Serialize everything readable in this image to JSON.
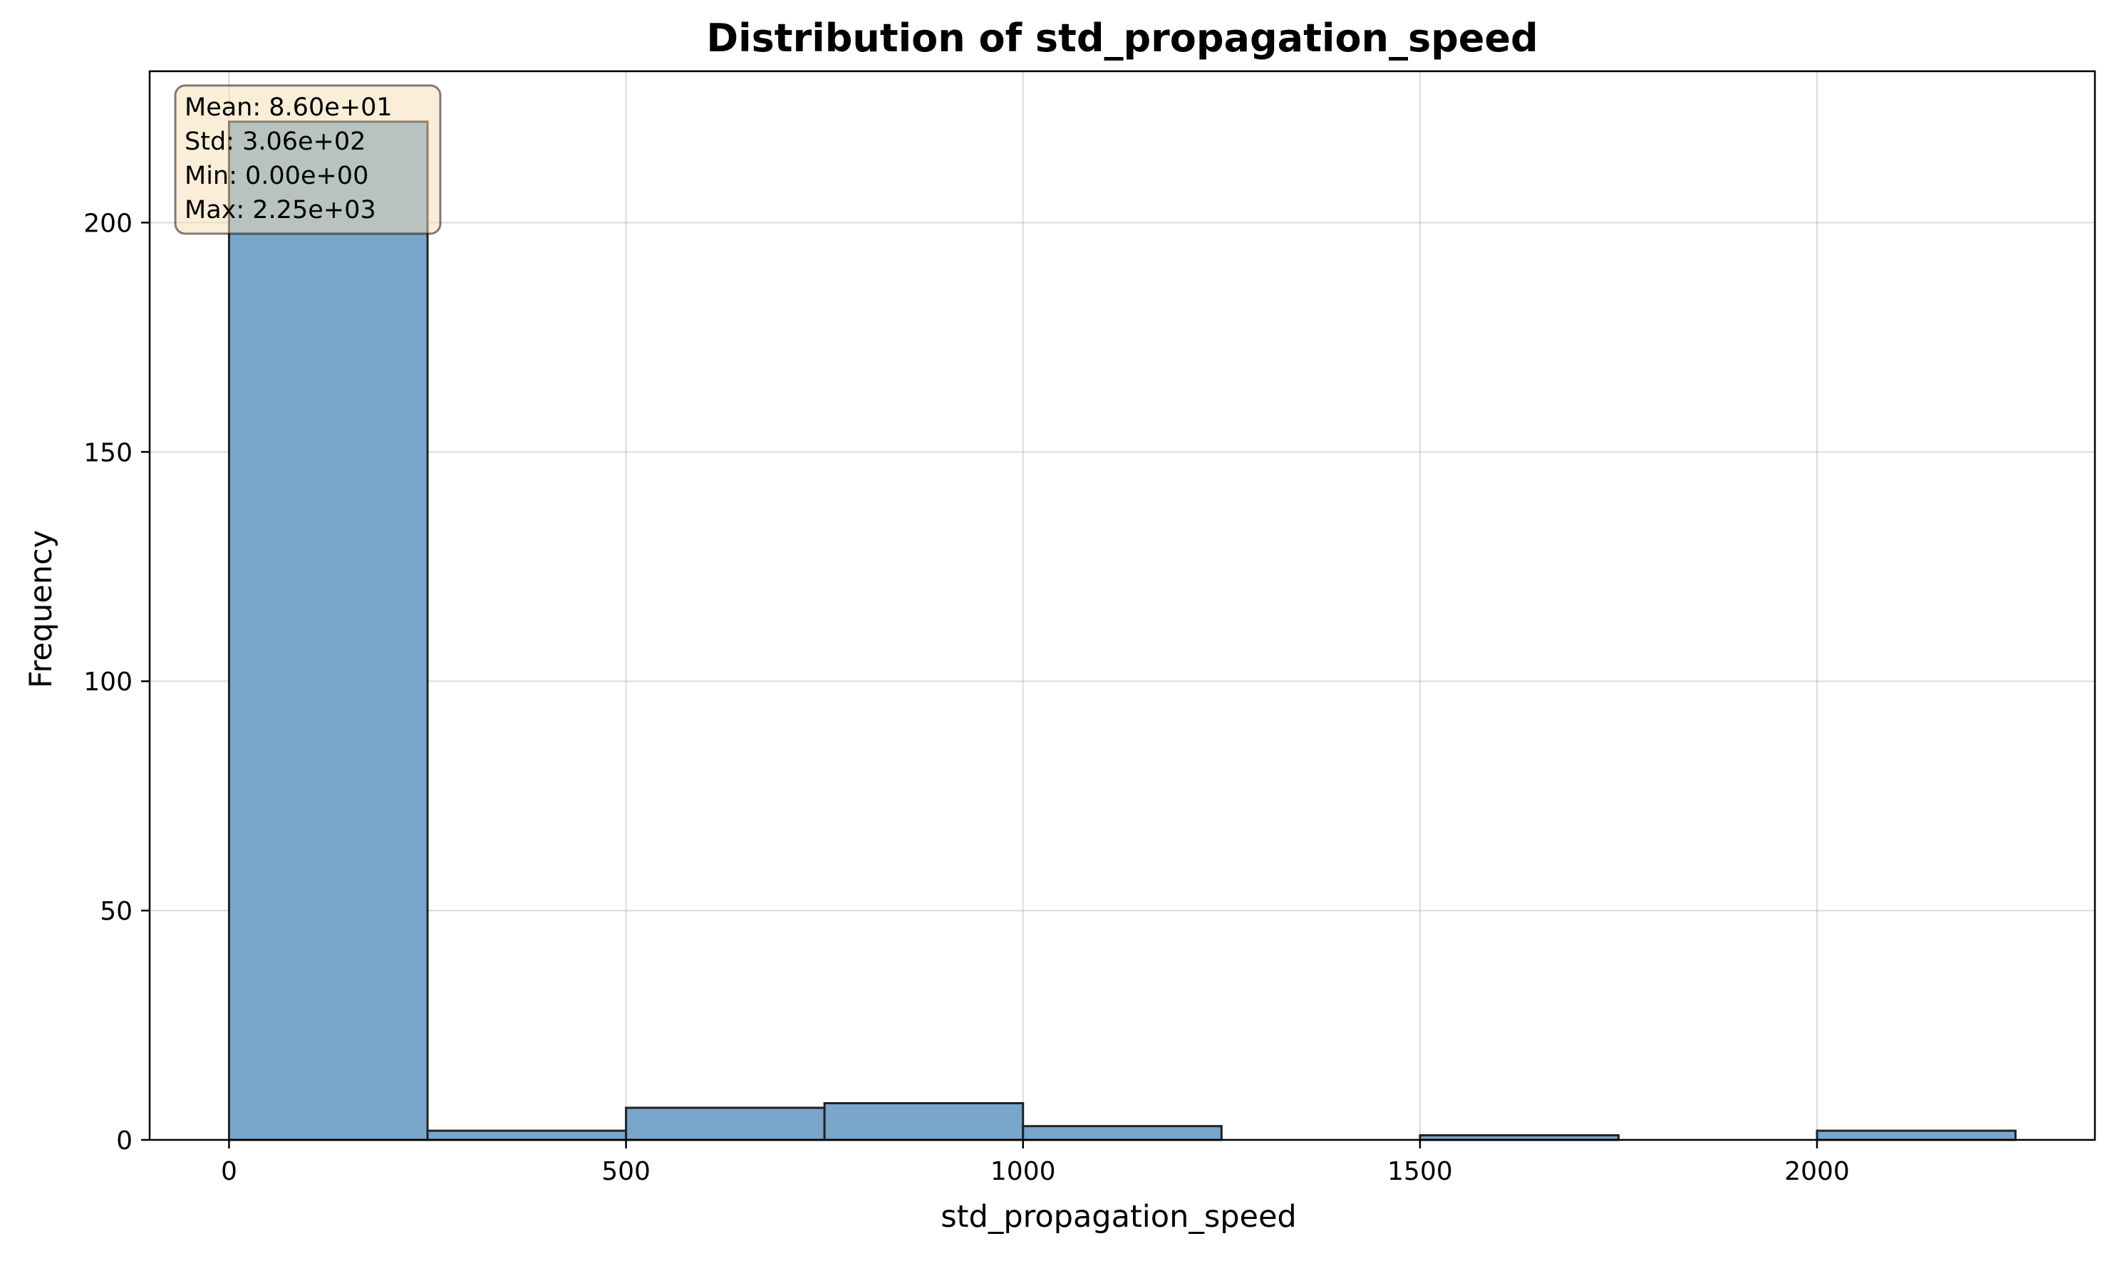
{
  "chart_data": {
    "type": "bar",
    "title": "Distribution of std_propagation_speed",
    "xlabel": "std_propagation_speed",
    "ylabel": "Frequency",
    "xlim": [
      -100,
      2350
    ],
    "ylim": [
      0,
      233
    ],
    "x_ticks": [
      0,
      500,
      1000,
      1500,
      2000
    ],
    "y_ticks": [
      0,
      50,
      100,
      150,
      200
    ],
    "grid": true,
    "bin_edges": [
      0,
      250,
      500,
      750,
      1000,
      1250,
      1500,
      1750,
      2000,
      2250
    ],
    "values": [
      222,
      2,
      7,
      8,
      3,
      0,
      1,
      0,
      2
    ],
    "bar_color": "#7aa6cc",
    "bar_edge_color": "#222222",
    "stats_box": {
      "lines": [
        "Mean: 8.60e+01",
        "Std: 3.06e+02",
        "Min: 0.00e+00",
        "Max: 2.25e+03"
      ],
      "background": "#f5deb3",
      "placement": "top-left"
    }
  }
}
